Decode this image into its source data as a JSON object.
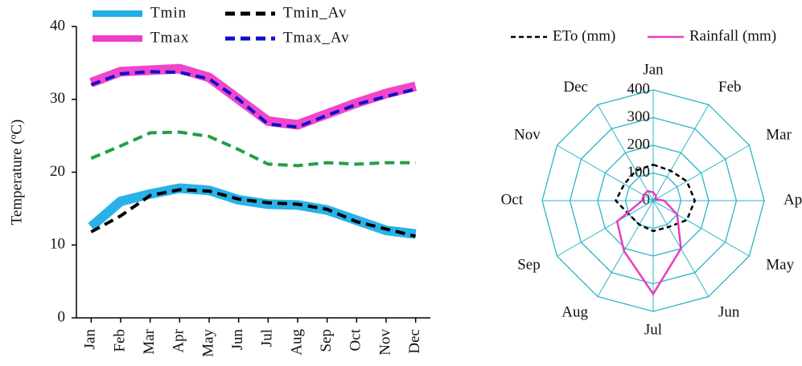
{
  "chart_data": [
    {
      "type": "line",
      "y_label": "Temperature (ºC)",
      "categories": [
        "Jan",
        "Feb",
        "Mar",
        "Apr",
        "May",
        "Jun",
        "Jul",
        "Aug",
        "Sep",
        "Oct",
        "Nov",
        "Dec"
      ],
      "ylim": [
        0,
        40
      ],
      "yticks": [
        0,
        10,
        20,
        30,
        40
      ],
      "series": [
        {
          "name": "Tmin",
          "color": "#1eaee6",
          "style": "band",
          "values": [
            12.5,
            16,
            17,
            17.8,
            17.5,
            16.2,
            15.6,
            15.5,
            14.8,
            13.4,
            12,
            11.5
          ]
        },
        {
          "name": "Tmax",
          "color": "#f03cc8",
          "style": "band",
          "values": [
            32.3,
            33.8,
            34,
            34.2,
            33,
            30,
            27,
            26.5,
            28,
            29.5,
            30.8,
            31.8
          ]
        },
        {
          "color": "#22a043",
          "style": "dashed",
          "values": [
            21.9,
            23.6,
            25.4,
            25.5,
            24.9,
            23.1,
            21.1,
            20.9,
            21.3,
            21.1,
            21.3,
            21.3
          ]
        },
        {
          "name": "Tmin_Av",
          "color": "#000000",
          "style": "dashed",
          "values": [
            11.8,
            14,
            16.8,
            17.6,
            17.4,
            16.3,
            15.8,
            15.6,
            14.9,
            13.2,
            12.2,
            11.2
          ]
        },
        {
          "name": "Tmax_Av",
          "color": "#1010c8",
          "style": "dashed",
          "values": [
            32,
            33.5,
            33.8,
            33.7,
            32.8,
            30,
            26.6,
            26.2,
            27.8,
            29.3,
            30.4,
            31.4
          ]
        }
      ]
    },
    {
      "type": "radar",
      "categories": [
        "Jan",
        "Feb",
        "Mar",
        "Apr",
        "May",
        "Jun",
        "Jul",
        "Aug",
        "Sep",
        "Oct",
        "Nov",
        "Dec"
      ],
      "rlim": [
        0,
        400
      ],
      "rticks": [
        0,
        100,
        200,
        300,
        400
      ],
      "grid_color": "#2bb5c8",
      "series": [
        {
          "name": "ETo (mm)",
          "color": "#000000",
          "style": "dashed",
          "values": [
            130,
            125,
            140,
            150,
            140,
            110,
            110,
            100,
            100,
            135,
            120,
            125
          ]
        },
        {
          "name": "Rainfall (mm)",
          "color": "#e83cc0",
          "style": "solid",
          "values": [
            30,
            20,
            10,
            40,
            100,
            200,
            337,
            210,
            150,
            40,
            40,
            40
          ]
        }
      ]
    }
  ]
}
